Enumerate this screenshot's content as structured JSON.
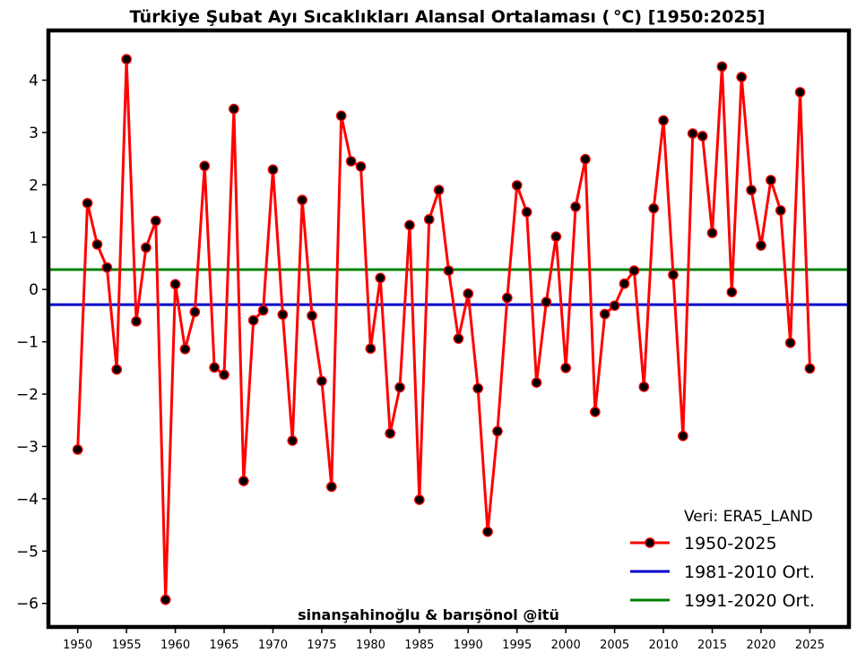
{
  "chart_data": {
    "type": "line",
    "title": "Türkiye Şubat Ayı Sıcaklıkları Alansal Ortalaması ($^\\circ$C) [1950:2025]",
    "title_display": "Türkiye Şubat Ayı Sıcaklıkları Alansal Ortalaması ( °C) [1950:2025]",
    "xlabel": "",
    "ylabel": "",
    "xlim": [
      1947,
      2029
    ],
    "ylim": [
      -6.45,
      4.95
    ],
    "xticks": [
      1950,
      1955,
      1960,
      1965,
      1970,
      1975,
      1980,
      1985,
      1990,
      1995,
      2000,
      2005,
      2010,
      2015,
      2020,
      2025
    ],
    "yticks": [
      -6,
      -5,
      -4,
      -3,
      -2,
      -1,
      0,
      1,
      2,
      3,
      4
    ],
    "ytick_labels": [
      "−6",
      "−5",
      "−4",
      "−3",
      "−2",
      "−1",
      "0",
      "1",
      "2",
      "3",
      "4"
    ],
    "series": [
      {
        "name": "1950-2025",
        "color": "#ff0000",
        "marker_color": "#000000",
        "x": [
          1950,
          1951,
          1952,
          1953,
          1954,
          1955,
          1956,
          1957,
          1958,
          1959,
          1960,
          1961,
          1962,
          1963,
          1964,
          1965,
          1966,
          1967,
          1968,
          1969,
          1970,
          1971,
          1972,
          1973,
          1974,
          1975,
          1976,
          1977,
          1978,
          1979,
          1980,
          1981,
          1982,
          1983,
          1984,
          1985,
          1986,
          1987,
          1988,
          1989,
          1990,
          1991,
          1992,
          1993,
          1994,
          1995,
          1996,
          1997,
          1998,
          1999,
          2000,
          2001,
          2002,
          2003,
          2004,
          2005,
          2006,
          2007,
          2008,
          2009,
          2010,
          2011,
          2012,
          2013,
          2014,
          2015,
          2016,
          2017,
          2018,
          2019,
          2020,
          2021,
          2022,
          2023,
          2024,
          2025
        ],
        "values": [
          -3.06,
          1.65,
          0.86,
          0.42,
          -1.53,
          4.4,
          -0.61,
          0.8,
          1.31,
          -5.93,
          0.1,
          -1.14,
          -0.43,
          2.36,
          -1.49,
          -1.63,
          3.45,
          -3.66,
          -0.59,
          -0.4,
          2.29,
          -0.48,
          -2.89,
          1.71,
          -0.5,
          -1.75,
          -3.77,
          3.32,
          2.45,
          2.35,
          -1.13,
          0.22,
          -2.75,
          -1.87,
          1.23,
          -4.02,
          1.34,
          1.9,
          0.36,
          -0.94,
          -0.08,
          -1.89,
          -4.63,
          -2.71,
          -0.16,
          1.99,
          1.48,
          -1.78,
          -0.24,
          1.01,
          -1.5,
          1.58,
          2.49,
          -2.34,
          -0.47,
          -0.31,
          0.11,
          0.36,
          -1.86,
          1.55,
          3.23,
          0.28,
          -2.8,
          2.98,
          2.93,
          1.08,
          4.26,
          -0.05,
          4.06,
          1.9,
          0.84,
          2.09,
          1.51,
          -1.02,
          3.77,
          -1.51
        ]
      }
    ],
    "reference_lines": [
      {
        "name": "1981-2010 Ort.",
        "value": -0.29,
        "color": "#0000cd"
      },
      {
        "name": "1991-2020 Ort.",
        "value": 0.38,
        "color": "#008000"
      }
    ],
    "legend": {
      "title": "Veri: ERA5_LAND",
      "placement": "bottom-right",
      "entries": [
        "1950-2025",
        "1981-2010 Ort.",
        "1991-2020 Ort."
      ]
    },
    "annotation": "sinanşahinoğlu & barışönol @itü",
    "grid": false
  }
}
